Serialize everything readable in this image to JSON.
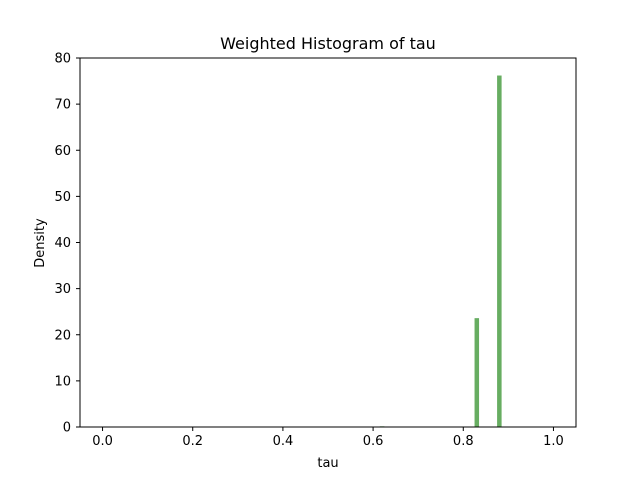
{
  "chart_data": {
    "type": "bar",
    "title": "Weighted Histogram of tau",
    "xlabel": "tau",
    "ylabel": "Density",
    "xlim": [
      -0.05,
      1.05
    ],
    "ylim": [
      0,
      80
    ],
    "grid": false,
    "x_ticks": [
      0.0,
      0.2,
      0.4,
      0.6,
      0.8,
      1.0
    ],
    "x_tick_labels": [
      "0.0",
      "0.2",
      "0.4",
      "0.6",
      "0.8",
      "1.0"
    ],
    "y_ticks": [
      0,
      10,
      20,
      30,
      40,
      50,
      60,
      70,
      80
    ],
    "y_tick_labels": [
      "0",
      "10",
      "20",
      "30",
      "40",
      "50",
      "60",
      "70",
      "80"
    ],
    "bin_width": 0.01,
    "bins": [
      {
        "x": 0.62,
        "value": 0.15
      },
      {
        "x": 0.83,
        "value": 23.6
      },
      {
        "x": 0.88,
        "value": 76.2
      }
    ],
    "bar_color": "#4c9f45",
    "bar_opacity": 0.85
  }
}
